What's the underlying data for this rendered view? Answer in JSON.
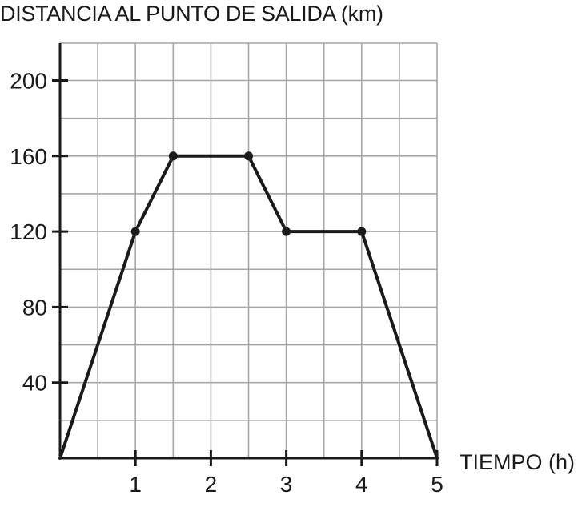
{
  "chart_data": {
    "type": "line",
    "title": "",
    "ylabel": "DISTANCIA AL PUNTO DE SALIDA (km)",
    "xlabel": "TIEMPO (h)",
    "xlim": [
      0,
      5
    ],
    "ylim": [
      0,
      200
    ],
    "grid": true,
    "x_grid_step": 0.5,
    "y_grid_step": 20,
    "x_ticks": [
      1,
      2,
      3,
      4,
      5
    ],
    "x_tick_labels": [
      "1",
      "2",
      "3",
      "4",
      "5"
    ],
    "y_ticks": [
      40,
      80,
      120,
      160,
      200
    ],
    "y_tick_labels": [
      "40",
      "80",
      "120",
      "160",
      "200"
    ],
    "x": [
      0,
      1,
      1.5,
      2.5,
      3,
      4,
      5
    ],
    "y": [
      0,
      120,
      160,
      160,
      120,
      120,
      0
    ],
    "markers_at_index": [
      1,
      2,
      3,
      4,
      5
    ],
    "colors": {
      "line": "#1a1a1a",
      "grid": "#a6a6a6",
      "axis": "#1a1a1a",
      "text": "#1a1a1a"
    }
  }
}
